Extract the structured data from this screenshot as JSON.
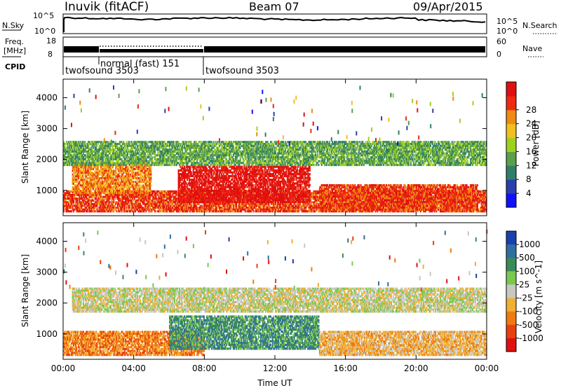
{
  "header": {
    "station": "Inuvik (fitACF)",
    "beam": "Beam 07",
    "date": "09/Apr/2015"
  },
  "status_panels": {
    "nsky_label": "N.Sky",
    "nsky_ticks": [
      "10^5",
      "10^0"
    ],
    "nsearch_label": "N.Search",
    "freq_label_line1": "Freq.",
    "freq_label_line2": "[MHz]",
    "freq_ticks": [
      "18",
      "8"
    ],
    "nave_ticks": [
      "60",
      "0"
    ],
    "nave_label": "Nave",
    "cpid_label": "CPID",
    "cpid_segments": [
      {
        "label": "twofsound 3503",
        "start_h": 0,
        "end_h": 2
      },
      {
        "label": "normal (fast) 151",
        "start_h": 2,
        "end_h": 8
      },
      {
        "label": "twofsound 3503",
        "start_h": 8,
        "end_h": 24
      }
    ]
  },
  "chart_data": [
    {
      "type": "heatmap",
      "name": "power",
      "ylabel": "Slant Range [km]",
      "yticks": [
        1000,
        2000,
        3000,
        4000
      ],
      "ylim": [
        180,
        4600
      ],
      "xlim": [
        0,
        24
      ],
      "colorbar_label": "Power [dB]",
      "colorbar_ticks": [
        "4",
        "8",
        "12",
        "16",
        "20",
        "24",
        "28"
      ],
      "colorbar_colors": [
        "#1010ff",
        "#2a3fae",
        "#2f7f6a",
        "#5aa04a",
        "#a0d01c",
        "#f0c020",
        "#f08a10",
        "#ee2a10",
        "#e01010"
      ],
      "bands": [
        {
          "t0": 0,
          "t1": 24,
          "r0": 300,
          "r1": 1000,
          "color_idx": 7
        },
        {
          "t0": 0.5,
          "t1": 5,
          "r0": 900,
          "r1": 1900,
          "color_idx": 6
        },
        {
          "t0": 6.5,
          "t1": 14,
          "r0": 600,
          "r1": 1800,
          "color_idx": 8
        },
        {
          "t0": 14.5,
          "t1": 23.5,
          "r0": 350,
          "r1": 1200,
          "color_idx": 7
        },
        {
          "t0": 0,
          "t1": 24,
          "r0": 1800,
          "r1": 2600,
          "color_idx": 3
        }
      ]
    },
    {
      "type": "heatmap",
      "name": "velocity",
      "ylabel": "Slant Range [km]",
      "yticks": [
        1000,
        2000,
        3000,
        4000
      ],
      "ylim": [
        180,
        4600
      ],
      "xlabel": "Time UT",
      "xticks": [
        "00:00",
        "04:00",
        "08:00",
        "12:00",
        "16:00",
        "20:00",
        "00:00"
      ],
      "xlim": [
        0,
        24
      ],
      "colorbar_label": "Velocity [m s^-1]",
      "colorbar_ticks": [
        "1000",
        "500",
        "100",
        "25",
        "-25",
        "-100",
        "-500",
        "-1000"
      ],
      "colorbar_colors": [
        "#1a3fb0",
        "#2f6fa0",
        "#3b8a5a",
        "#7ac850",
        "#c8c8c0",
        "#f0b030",
        "#f07a10",
        "#e84010",
        "#e01010"
      ],
      "bands": [
        {
          "t0": 0,
          "t1": 8,
          "r0": 300,
          "r1": 1100,
          "color_idx": 6
        },
        {
          "t0": 6,
          "t1": 14.5,
          "r0": 500,
          "r1": 1600,
          "color_idx": 2
        },
        {
          "t0": 0.5,
          "t1": 24,
          "r0": 1700,
          "r1": 2500,
          "color_idx": 4
        },
        {
          "t0": 14.5,
          "t1": 24,
          "r0": 300,
          "r1": 1100,
          "color_idx": 5
        }
      ]
    }
  ]
}
